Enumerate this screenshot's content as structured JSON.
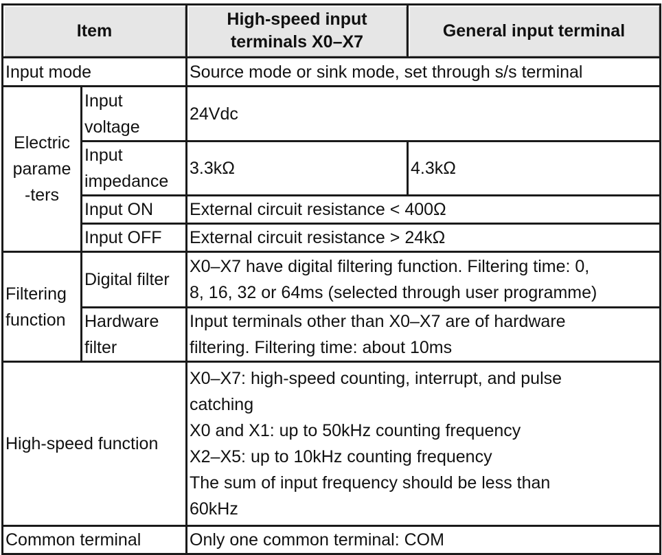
{
  "header": {
    "item": "Item",
    "high_speed": [
      "High-speed input",
      "terminals X0–X7"
    ],
    "general": "General input terminal"
  },
  "rows": {
    "input_mode": {
      "label": "Input mode",
      "value": "Source mode or sink mode, set through s/s terminal"
    },
    "electric": {
      "label": [
        "Electric",
        "parame",
        "-ters"
      ],
      "voltage": {
        "label": [
          "Input",
          "voltage"
        ],
        "value": "24Vdc"
      },
      "impedance": {
        "label": [
          "Input",
          "impedance"
        ],
        "high_speed": "3.3kΩ",
        "general": "4.3kΩ"
      },
      "on": {
        "label": "Input ON",
        "value": "External circuit resistance < 400Ω"
      },
      "off": {
        "label": "Input OFF",
        "value": "External circuit resistance > 24kΩ"
      }
    },
    "filtering": {
      "label": [
        "Filtering",
        "function"
      ],
      "digital": {
        "label": "Digital filter",
        "value": [
          "X0–X7 have digital filtering function. Filtering time: 0,",
          "8, 16, 32 or 64ms (selected through user programme)"
        ]
      },
      "hardware": {
        "label": [
          "Hardware",
          "filter"
        ],
        "value": [
          "Input terminals other than X0–X7 are of hardware",
          "filtering. Filtering time: about 10ms"
        ]
      }
    },
    "high_speed_function": {
      "label": "High-speed function",
      "value": [
        "X0–X7: high-speed counting, interrupt, and pulse",
        "catching",
        "X0 and X1: up to 50kHz counting frequency",
        "X2–X5: up to 10kHz counting frequency",
        "The sum of input frequency should be less than",
        "60kHz"
      ]
    },
    "common": {
      "label": "Common terminal",
      "value": "Only one common terminal: COM"
    }
  }
}
